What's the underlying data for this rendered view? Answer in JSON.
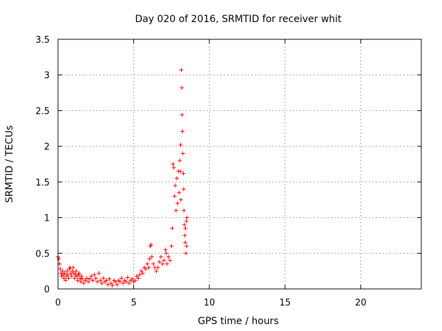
{
  "chart_data": {
    "type": "scatter",
    "title": "Day 020 of 2016, SRMTID for receiver whit",
    "xlabel": "GPS time / hours",
    "ylabel": "SRMTID / TECUs",
    "xlim": [
      0,
      24
    ],
    "ylim": [
      0,
      3.5
    ],
    "xticks": [
      0,
      5,
      10,
      15,
      20
    ],
    "xtick_labels": [
      "0",
      "5",
      "10",
      "15",
      "20"
    ],
    "yticks": [
      0,
      0.5,
      1,
      1.5,
      2,
      2.5,
      3,
      3.5
    ],
    "ytick_labels": [
      "0",
      "0.5",
      "1",
      "1.5",
      "2",
      "2.5",
      "3",
      "3.5"
    ],
    "grid": true,
    "marker": "+",
    "series": [
      {
        "name": "SRMTID",
        "color": "#ff0000",
        "points": [
          [
            0.0,
            0.45
          ],
          [
            0.05,
            0.42
          ],
          [
            0.1,
            0.35
          ],
          [
            0.15,
            0.28
          ],
          [
            0.2,
            0.22
          ],
          [
            0.25,
            0.18
          ],
          [
            0.3,
            0.25
          ],
          [
            0.35,
            0.2
          ],
          [
            0.4,
            0.15
          ],
          [
            0.45,
            0.22
          ],
          [
            0.5,
            0.12
          ],
          [
            0.55,
            0.18
          ],
          [
            0.6,
            0.25
          ],
          [
            0.65,
            0.2
          ],
          [
            0.7,
            0.15
          ],
          [
            0.75,
            0.28
          ],
          [
            0.8,
            0.3
          ],
          [
            0.85,
            0.22
          ],
          [
            0.9,
            0.18
          ],
          [
            0.95,
            0.25
          ],
          [
            1.0,
            0.3
          ],
          [
            1.05,
            0.22
          ],
          [
            1.1,
            0.15
          ],
          [
            1.15,
            0.2
          ],
          [
            1.2,
            0.25
          ],
          [
            1.25,
            0.18
          ],
          [
            1.3,
            0.12
          ],
          [
            1.35,
            0.2
          ],
          [
            1.4,
            0.22
          ],
          [
            1.45,
            0.15
          ],
          [
            1.5,
            0.1
          ],
          [
            1.55,
            0.18
          ],
          [
            1.6,
            0.14
          ],
          [
            1.7,
            0.08
          ],
          [
            1.8,
            0.12
          ],
          [
            1.9,
            0.15
          ],
          [
            2.0,
            0.1
          ],
          [
            2.1,
            0.14
          ],
          [
            2.2,
            0.18
          ],
          [
            2.3,
            0.12
          ],
          [
            2.4,
            0.2
          ],
          [
            2.5,
            0.15
          ],
          [
            2.6,
            0.1
          ],
          [
            2.7,
            0.22
          ],
          [
            2.8,
            0.12
          ],
          [
            2.9,
            0.08
          ],
          [
            3.0,
            0.15
          ],
          [
            3.1,
            0.1
          ],
          [
            3.2,
            0.12
          ],
          [
            3.3,
            0.06
          ],
          [
            3.4,
            0.14
          ],
          [
            3.5,
            0.08
          ],
          [
            3.6,
            0.05
          ],
          [
            3.7,
            0.12
          ],
          [
            3.8,
            0.1
          ],
          [
            3.9,
            0.06
          ],
          [
            4.0,
            0.12
          ],
          [
            4.1,
            0.1
          ],
          [
            4.2,
            0.15
          ],
          [
            4.3,
            0.08
          ],
          [
            4.4,
            0.12
          ],
          [
            4.5,
            0.1
          ],
          [
            4.6,
            0.16
          ],
          [
            4.7,
            0.08
          ],
          [
            4.8,
            0.12
          ],
          [
            4.9,
            0.14
          ],
          [
            5.0,
            0.1
          ],
          [
            5.1,
            0.12
          ],
          [
            5.2,
            0.18
          ],
          [
            5.3,
            0.15
          ],
          [
            5.4,
            0.2
          ],
          [
            5.5,
            0.25
          ],
          [
            5.6,
            0.22
          ],
          [
            5.7,
            0.3
          ],
          [
            5.8,
            0.28
          ],
          [
            5.9,
            0.35
          ],
          [
            6.0,
            0.3
          ],
          [
            6.05,
            0.42
          ],
          [
            6.1,
            0.6
          ],
          [
            6.15,
            0.62
          ],
          [
            6.2,
            0.45
          ],
          [
            6.3,
            0.35
          ],
          [
            6.4,
            0.3
          ],
          [
            6.5,
            0.25
          ],
          [
            6.6,
            0.3
          ],
          [
            6.7,
            0.38
          ],
          [
            6.8,
            0.45
          ],
          [
            6.9,
            0.35
          ],
          [
            7.0,
            0.4
          ],
          [
            7.1,
            0.55
          ],
          [
            7.15,
            0.5
          ],
          [
            7.2,
            0.35
          ],
          [
            7.3,
            0.45
          ],
          [
            7.4,
            0.4
          ],
          [
            7.5,
            0.6
          ],
          [
            7.55,
            0.85
          ],
          [
            7.6,
            1.75
          ],
          [
            7.65,
            1.7
          ],
          [
            7.7,
            1.3
          ],
          [
            7.75,
            1.45
          ],
          [
            7.8,
            1.1
          ],
          [
            7.85,
            1.55
          ],
          [
            7.9,
            1.2
          ],
          [
            7.95,
            1.65
          ],
          [
            8.0,
            1.35
          ],
          [
            8.05,
            1.8
          ],
          [
            8.08,
            1.65
          ],
          [
            8.1,
            2.02
          ],
          [
            8.12,
            1.25
          ],
          [
            8.15,
            3.07
          ],
          [
            8.18,
            2.82
          ],
          [
            8.2,
            2.44
          ],
          [
            8.22,
            2.21
          ],
          [
            8.25,
            1.9
          ],
          [
            8.28,
            1.62
          ],
          [
            8.3,
            1.4
          ],
          [
            8.32,
            1.1
          ],
          [
            8.35,
            0.9
          ],
          [
            8.38,
            0.75
          ],
          [
            8.4,
            0.65
          ],
          [
            8.42,
            0.85
          ],
          [
            8.45,
            0.5
          ],
          [
            8.48,
            0.95
          ],
          [
            8.5,
            0.6
          ],
          [
            8.52,
            1.0
          ]
        ]
      }
    ]
  }
}
